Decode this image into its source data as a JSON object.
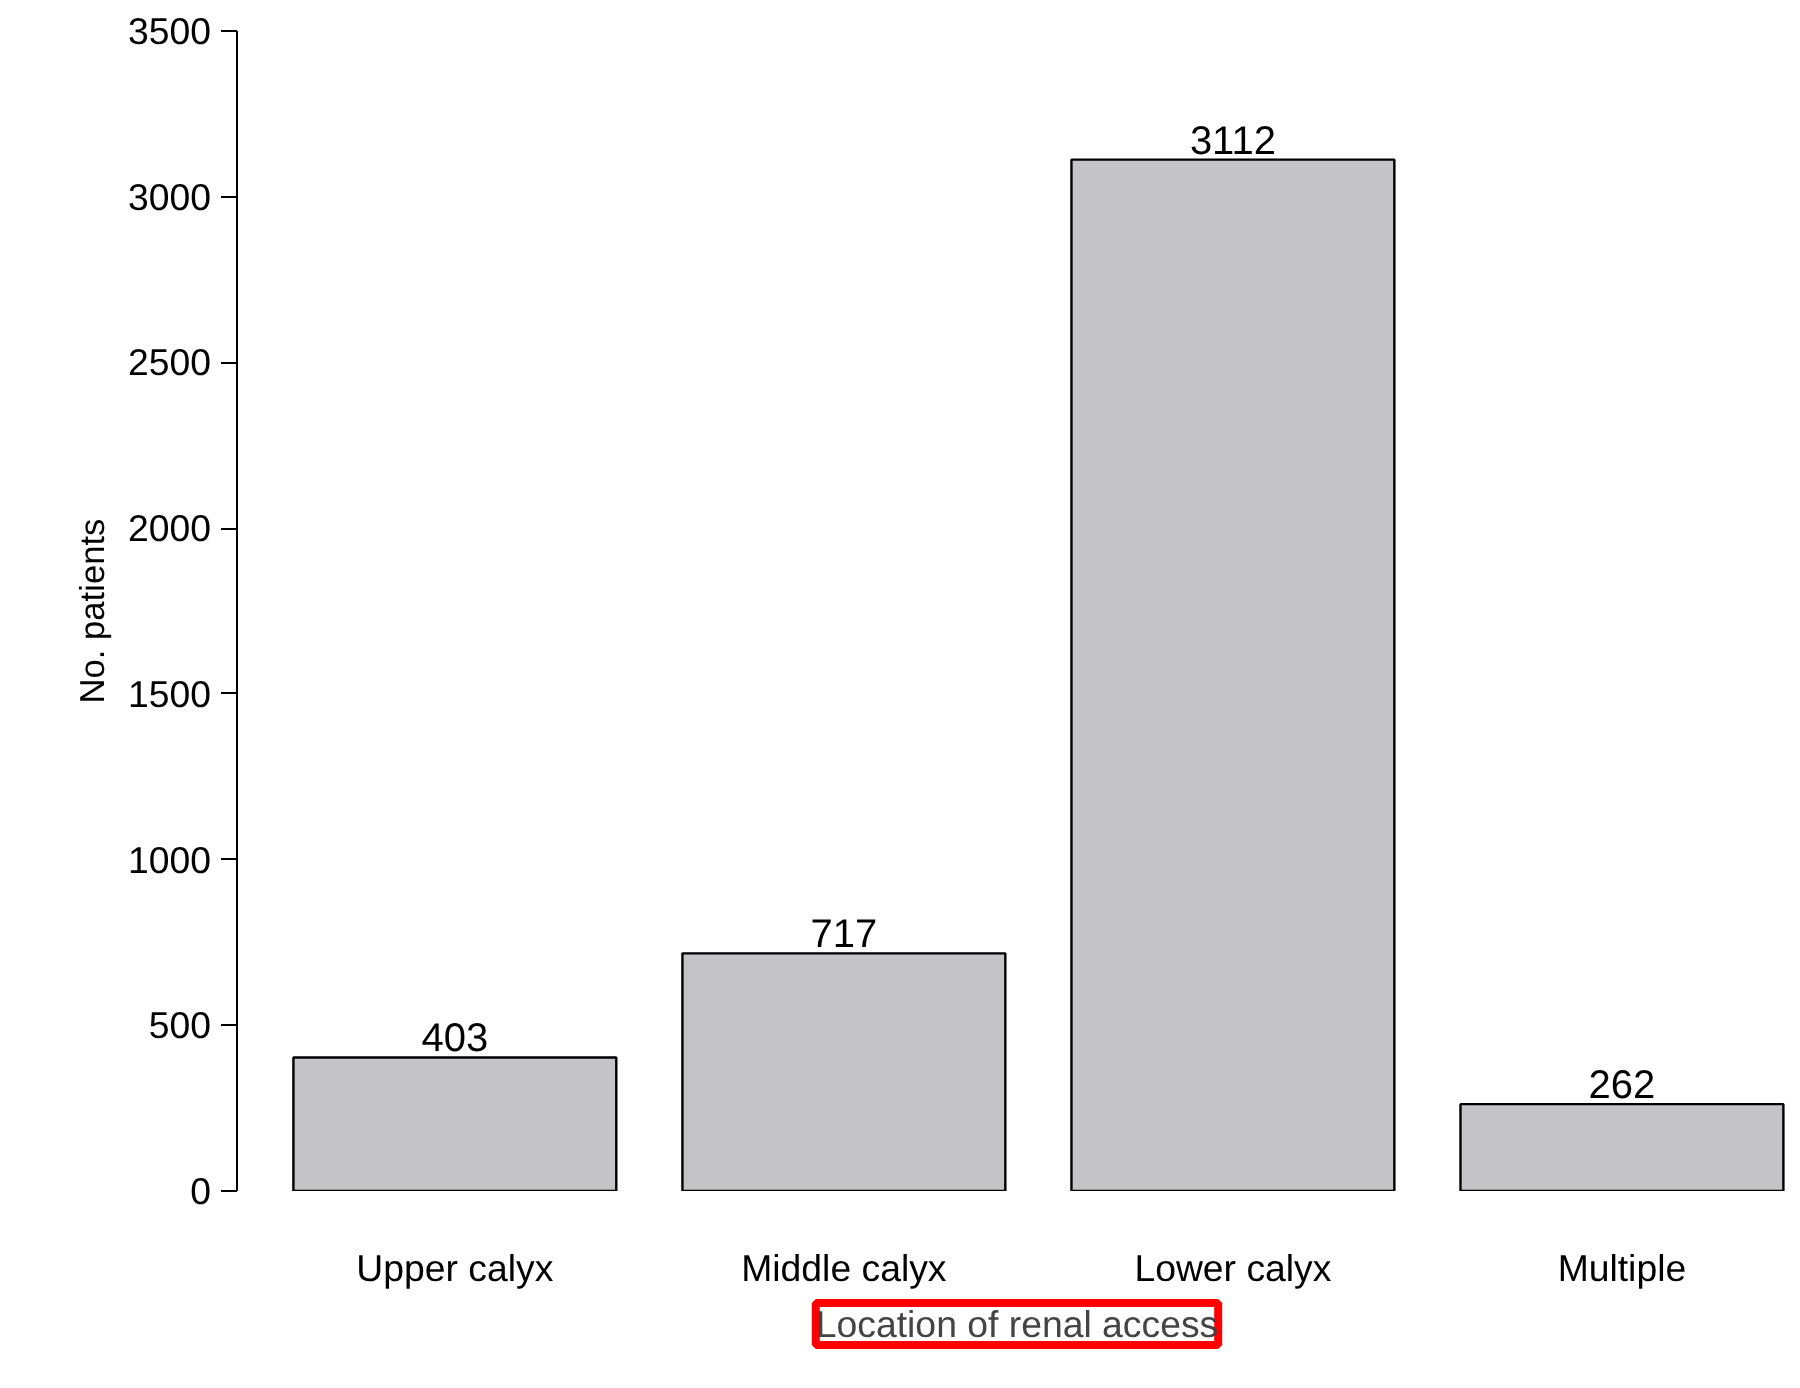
{
  "chart_data": {
    "type": "bar",
    "xlabel": "Location of renal access",
    "ylabel": "No. patients",
    "categories": [
      "Upper calyx",
      "Middle calyx",
      "Lower calyx",
      "Multiple"
    ],
    "values": [
      403,
      717,
      3112,
      262
    ],
    "color": "#c4c4c6",
    "ylim": [
      0,
      3500
    ],
    "yticks": [
      0,
      500,
      1000,
      1500,
      2000,
      2500,
      3000,
      3500
    ],
    "data_labels": true,
    "grid": false
  }
}
